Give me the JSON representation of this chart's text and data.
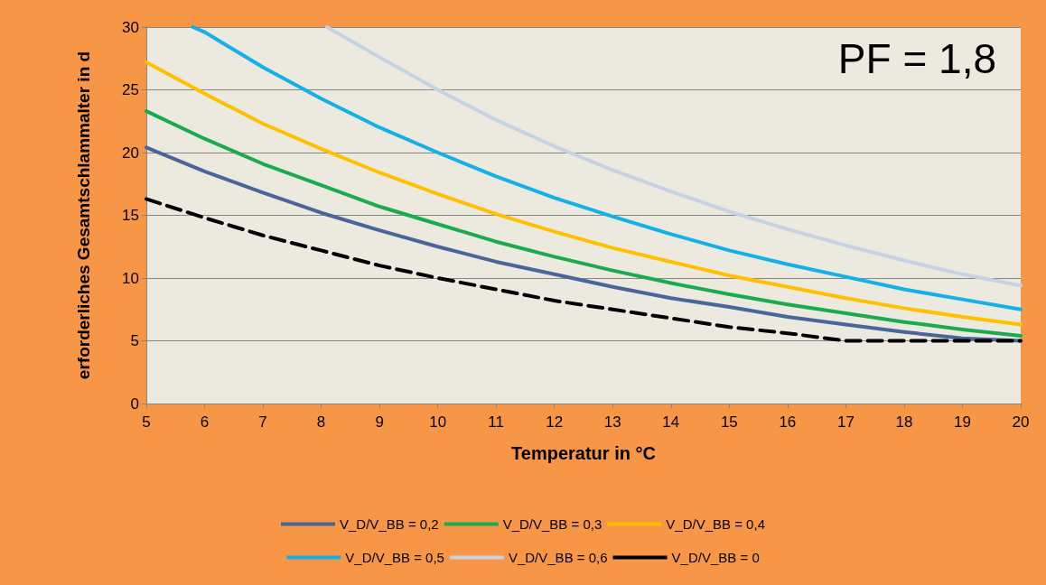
{
  "chart_data": {
    "type": "line",
    "xlabel": "Temperatur in °C",
    "ylabel": "erforderliches Gesamtschlammalter in d",
    "annotations": [
      "PF = 1,8"
    ],
    "xlim": [
      5,
      20
    ],
    "xticks": [
      5,
      6,
      7,
      8,
      9,
      10,
      11,
      12,
      13,
      14,
      15,
      16,
      17,
      18,
      19,
      20
    ],
    "ylim": [
      0,
      30
    ],
    "yticks": [
      0,
      5,
      10,
      15,
      20,
      25,
      30
    ],
    "grid": "y",
    "legend": "bottom",
    "marker": "none",
    "series": [
      {
        "name": "V_D/V_BB = 0,2",
        "color": "#4a6597",
        "x": [
          5,
          6,
          7,
          8,
          9,
          10,
          11,
          12,
          13,
          14,
          15,
          16,
          17,
          18,
          19,
          20
        ],
        "values": [
          20.4,
          18.5,
          16.8,
          15.2,
          13.8,
          12.5,
          11.3,
          10.3,
          9.3,
          8.4,
          7.7,
          6.9,
          6.3,
          5.7,
          5.2,
          5
        ]
      },
      {
        "name": "V_D/V_BB = 0,3",
        "color": "#1aab50",
        "x": [
          5,
          6,
          7,
          8,
          9,
          10,
          11,
          12,
          13,
          14,
          15,
          16,
          17,
          18,
          19,
          20
        ],
        "values": [
          23.3,
          21.1,
          19.1,
          17.4,
          15.7,
          14.3,
          12.9,
          11.7,
          10.6,
          9.6,
          8.7,
          7.9,
          7.2,
          6.5,
          5.9,
          5.4
        ]
      },
      {
        "name": "V_D/V_BB = 0,4",
        "color": "#ffc000",
        "x": [
          5,
          6,
          7,
          8,
          9,
          10,
          11,
          12,
          13,
          14,
          15,
          16,
          17,
          18,
          19,
          20
        ],
        "values": [
          27.2,
          24.7,
          22.3,
          20.3,
          18.4,
          16.7,
          15.1,
          13.7,
          12.4,
          11.3,
          10.2,
          9.3,
          8.4,
          7.6,
          6.9,
          6.3
        ]
      },
      {
        "name": "V_D/V_BB = 0,5",
        "color": "#14b0e8",
        "x": [
          5.8,
          6,
          7,
          8,
          9,
          10,
          11,
          12,
          13,
          14,
          15,
          16,
          17,
          18,
          19,
          20
        ],
        "values": [
          30,
          29.6,
          26.8,
          24.3,
          22.0,
          20.0,
          18.1,
          16.4,
          14.9,
          13.5,
          12.2,
          11.1,
          10.1,
          9.1,
          8.3,
          7.5
        ]
      },
      {
        "name": "V_D/V_BB = 0,6",
        "color": "#c5d3e5",
        "x": [
          8.1,
          9,
          10,
          11,
          12,
          13,
          14,
          15,
          16,
          17,
          18,
          19,
          20
        ],
        "values": [
          30,
          27.6,
          25.0,
          22.6,
          20.5,
          18.6,
          16.9,
          15.3,
          13.9,
          12.6,
          11.4,
          10.3,
          9.4
        ]
      },
      {
        "name": "V_D/V_BB = 0",
        "color": "#000000",
        "line_style": "dashed",
        "x": [
          5,
          6,
          7,
          8,
          9,
          10,
          11,
          12,
          13,
          14,
          15,
          16,
          17,
          18,
          19,
          20
        ],
        "values": [
          16.3,
          14.8,
          13.4,
          12.2,
          11.0,
          10.0,
          9.1,
          8.2,
          7.5,
          6.8,
          6.1,
          5.6,
          5.0,
          5,
          5,
          5
        ]
      }
    ]
  }
}
